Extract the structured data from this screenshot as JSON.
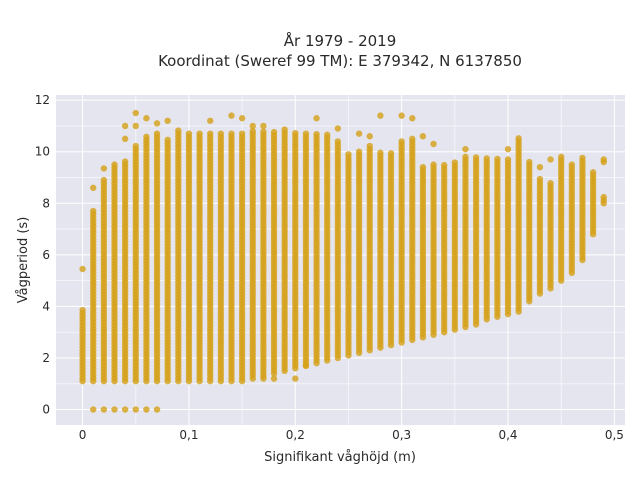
{
  "chart_data": {
    "type": "scatter",
    "title_line1": "År 1979 - 2019",
    "title_line2": "Koordinat (Sweref 99 TM): E 379342, N 6137850",
    "xlabel": "Signifikant våghöjd (m)",
    "ylabel": "Vågperiod (s)",
    "xlim": [
      -0.025,
      0.51
    ],
    "ylim": [
      -0.6,
      12.2
    ],
    "x_ticks": [
      0,
      0.1,
      0.2,
      0.3,
      0.4,
      0.5
    ],
    "x_tick_labels": [
      "0",
      "0,1",
      "0,2",
      "0,3",
      "0,4",
      "0,5"
    ],
    "y_ticks": [
      0,
      2,
      4,
      6,
      8,
      10,
      12
    ],
    "y_tick_labels": [
      "0",
      "2",
      "4",
      "6",
      "8",
      "10",
      "12"
    ],
    "grid": true,
    "marker_color": "#D4A017",
    "background_color": "#E5E5EF",
    "x_step": 0.01,
    "columns": [
      {
        "x": 0.0,
        "ymin": 1.1,
        "ymax": 3.9,
        "outliers": [
          5.45
        ]
      },
      {
        "x": 0.01,
        "ymin": 1.1,
        "ymax": 7.7,
        "outliers": [
          0,
          8.6
        ]
      },
      {
        "x": 0.02,
        "ymin": 1.1,
        "ymax": 9.0,
        "outliers": [
          0,
          9.35
        ]
      },
      {
        "x": 0.03,
        "ymin": 1.1,
        "ymax": 9.5,
        "outliers": [
          0
        ]
      },
      {
        "x": 0.04,
        "ymin": 1.1,
        "ymax": 9.7,
        "outliers": [
          0,
          10.5,
          11.0
        ]
      },
      {
        "x": 0.05,
        "ymin": 1.1,
        "ymax": 10.3,
        "outliers": [
          0,
          11.0,
          11.5
        ]
      },
      {
        "x": 0.06,
        "ymin": 1.1,
        "ymax": 10.6,
        "outliers": [
          0,
          11.3
        ]
      },
      {
        "x": 0.07,
        "ymin": 1.1,
        "ymax": 10.8,
        "outliers": [
          0,
          11.1
        ]
      },
      {
        "x": 0.08,
        "ymin": 1.1,
        "ymax": 10.5,
        "outliers": [
          11.2
        ]
      },
      {
        "x": 0.09,
        "ymin": 1.1,
        "ymax": 10.9,
        "outliers": []
      },
      {
        "x": 0.1,
        "ymin": 1.1,
        "ymax": 10.8,
        "outliers": []
      },
      {
        "x": 0.11,
        "ymin": 1.1,
        "ymax": 10.8,
        "outliers": []
      },
      {
        "x": 0.12,
        "ymin": 1.1,
        "ymax": 10.8,
        "outliers": [
          11.2
        ]
      },
      {
        "x": 0.13,
        "ymin": 1.1,
        "ymax": 10.8,
        "outliers": []
      },
      {
        "x": 0.14,
        "ymin": 1.1,
        "ymax": 10.8,
        "outliers": [
          11.4
        ]
      },
      {
        "x": 0.15,
        "ymin": 1.1,
        "ymax": 10.8,
        "outliers": [
          11.3
        ]
      },
      {
        "x": 0.16,
        "ymin": 1.2,
        "ymax": 10.8,
        "outliers": [
          11.0
        ]
      },
      {
        "x": 0.17,
        "ymin": 1.3,
        "ymax": 10.8,
        "outliers": [
          11.0,
          1.2
        ]
      },
      {
        "x": 0.18,
        "ymin": 1.4,
        "ymax": 10.8,
        "outliers": [
          1.2
        ]
      },
      {
        "x": 0.19,
        "ymin": 1.5,
        "ymax": 10.9,
        "outliers": []
      },
      {
        "x": 0.2,
        "ymin": 1.6,
        "ymax": 10.8,
        "outliers": [
          1.2
        ]
      },
      {
        "x": 0.21,
        "ymin": 1.7,
        "ymax": 10.8,
        "outliers": [
          1.7
        ]
      },
      {
        "x": 0.22,
        "ymin": 1.8,
        "ymax": 10.7,
        "outliers": [
          11.3
        ]
      },
      {
        "x": 0.23,
        "ymin": 1.9,
        "ymax": 10.7,
        "outliers": []
      },
      {
        "x": 0.24,
        "ymin": 2.0,
        "ymax": 10.4,
        "outliers": [
          10.9
        ]
      },
      {
        "x": 0.25,
        "ymin": 2.1,
        "ymax": 10.0,
        "outliers": []
      },
      {
        "x": 0.26,
        "ymin": 2.2,
        "ymax": 10.0,
        "outliers": [
          10.7
        ]
      },
      {
        "x": 0.27,
        "ymin": 2.3,
        "ymax": 10.3,
        "outliers": [
          10.6
        ]
      },
      {
        "x": 0.28,
        "ymin": 2.4,
        "ymax": 10.0,
        "outliers": [
          11.4
        ]
      },
      {
        "x": 0.29,
        "ymin": 2.5,
        "ymax": 10.0,
        "outliers": []
      },
      {
        "x": 0.3,
        "ymin": 2.6,
        "ymax": 10.5,
        "outliers": [
          11.4
        ]
      },
      {
        "x": 0.31,
        "ymin": 2.7,
        "ymax": 10.5,
        "outliers": [
          11.3
        ]
      },
      {
        "x": 0.32,
        "ymin": 2.8,
        "ymax": 9.5,
        "outliers": [
          10.6
        ]
      },
      {
        "x": 0.33,
        "ymin": 2.9,
        "ymax": 9.6,
        "outliers": [
          10.3
        ]
      },
      {
        "x": 0.34,
        "ymin": 3.0,
        "ymax": 9.5,
        "outliers": []
      },
      {
        "x": 0.35,
        "ymin": 3.1,
        "ymax": 9.6,
        "outliers": []
      },
      {
        "x": 0.36,
        "ymin": 3.2,
        "ymax": 9.8,
        "outliers": [
          10.1
        ]
      },
      {
        "x": 0.37,
        "ymin": 3.3,
        "ymax": 9.8,
        "outliers": []
      },
      {
        "x": 0.38,
        "ymin": 3.5,
        "ymax": 9.8,
        "outliers": []
      },
      {
        "x": 0.39,
        "ymin": 3.6,
        "ymax": 9.8,
        "outliers": []
      },
      {
        "x": 0.4,
        "ymin": 3.7,
        "ymax": 9.8,
        "outliers": [
          10.1
        ]
      },
      {
        "x": 0.41,
        "ymin": 3.8,
        "ymax": 10.6,
        "outliers": []
      },
      {
        "x": 0.42,
        "ymin": 4.2,
        "ymax": 9.6,
        "outliers": []
      },
      {
        "x": 0.43,
        "ymin": 4.5,
        "ymax": 9.0,
        "outliers": [
          9.4
        ]
      },
      {
        "x": 0.44,
        "ymin": 4.7,
        "ymax": 8.8,
        "outliers": [
          9.7
        ]
      },
      {
        "x": 0.45,
        "ymin": 5.0,
        "ymax": 9.8,
        "outliers": []
      },
      {
        "x": 0.46,
        "ymin": 5.3,
        "ymax": 9.5,
        "outliers": []
      },
      {
        "x": 0.47,
        "ymin": 5.8,
        "ymax": 9.8,
        "outliers": []
      },
      {
        "x": 0.48,
        "ymin": 6.8,
        "ymax": 9.2,
        "outliers": []
      },
      {
        "x": 0.49,
        "ymin": 8.0,
        "ymax": 8.3,
        "outliers": [
          9.6,
          9.7
        ]
      }
    ]
  }
}
